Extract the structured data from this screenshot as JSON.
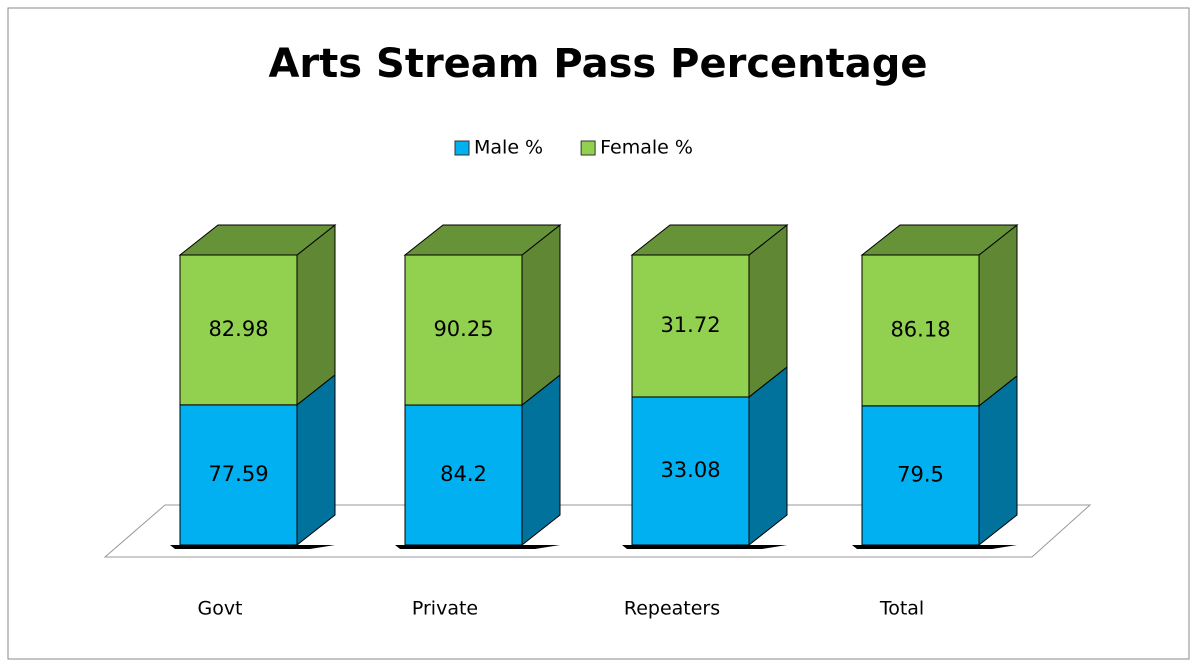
{
  "chart_data": {
    "type": "bar",
    "stacking": "percent",
    "three_d": true,
    "title": "Arts Stream Pass Percentage",
    "categories": [
      "Govt",
      "Private",
      "Repeaters",
      "Total"
    ],
    "series": [
      {
        "name": "Male %",
        "color": "#00b0f0",
        "values": [
          77.59,
          84.2,
          33.08,
          79.5
        ]
      },
      {
        "name": "Female %",
        "color": "#92d050",
        "values": [
          82.98,
          90.25,
          31.72,
          86.18
        ]
      }
    ],
    "legend": "top"
  }
}
